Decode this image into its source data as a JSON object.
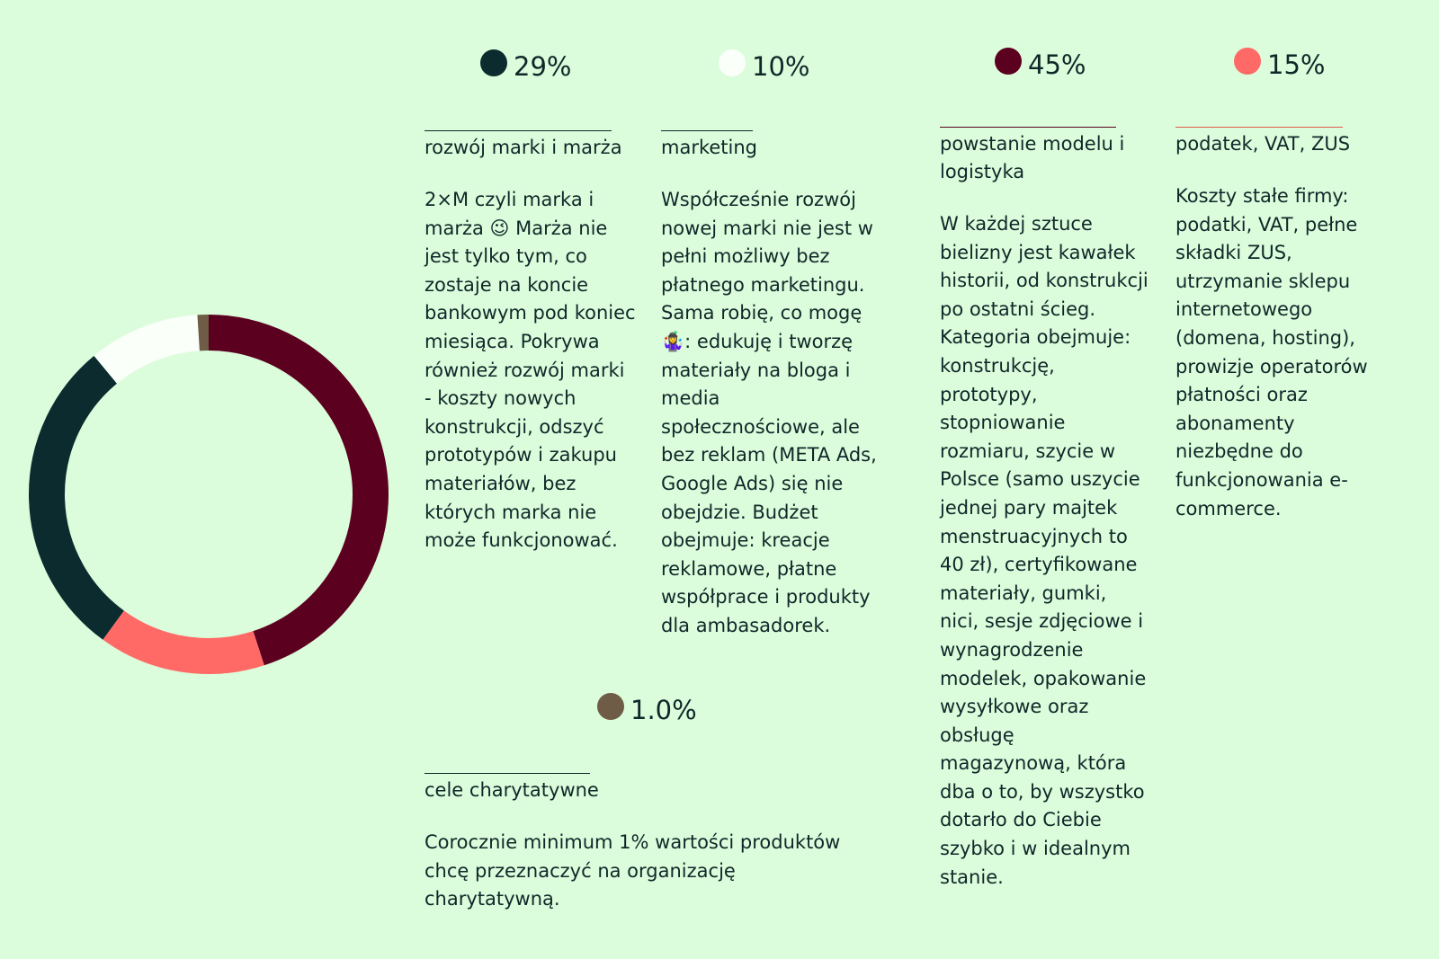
{
  "chart_data": {
    "type": "pie",
    "donut": true,
    "categories": [
      "rozwój marki i marża",
      "marketing",
      "cele charytatywne",
      "powstanie modelu i logistyka",
      "podatek, VAT, ZUS"
    ],
    "values": [
      29,
      10,
      1.0,
      45,
      15
    ],
    "value_labels": [
      "29%",
      "10%",
      "1.0%",
      "45%",
      "15%"
    ],
    "colors": [
      "#0b2b2f",
      "#fbfffa",
      "#6e5c46",
      "#5c0020",
      "#ff6a66"
    ],
    "descriptions": [
      "2×M czyli marka i marża 😉 Marża nie jest tylko tym, co zostaje na koncie bankowym pod koniec miesiąca. Pokrywa również rozwój marki - koszty nowych konstrukcji, odszyć prototypów i zakupu materiałów, bez których marka nie może funkcjonować.",
      "Współcześnie rozwój nowej marki nie jest w pełni możliwy bez płatnego marketingu. Sama robię, co mogę 🤹‍♀️: edukuję i tworzę materiały na bloga i media społecznościowe, ale bez reklam (META Ads, Google Ads) się nie obejdzie. Budżet obejmuje: kreacje reklamowe, płatne współprace i produkty dla ambasadorek.",
      "Corocznie minimum 1% wartości produktów chcę przeznaczyć na organizację charytatywną.",
      "W każdej sztuce bielizny jest kawałek historii, od konstrukcji po ostatni ścieg. Kategoria obejmuje: konstrukcję, prototypy, stopniowanie rozmiaru, szycie w Polsce (samo uszycie jednej pary majtek menstruacyjnych to 40 zł), certyfikowane materiały, gumki, nici, sesje zdjęciowe i wynagrodzenie modelek, opakowanie wysyłkowe oraz obsługę magazynową, która dba o to, by wszystko dotarło do Ciebie szybko i w idealnym stanie.",
      "Koszty stałe firmy: podatki, VAT, pełne składki ZUS, utrzymanie sklepu internetowego (domena, hosting), prowizje operatorów płatności oraz abonamenty niezbędne do funkcjonowania e-commerce."
    ]
  }
}
